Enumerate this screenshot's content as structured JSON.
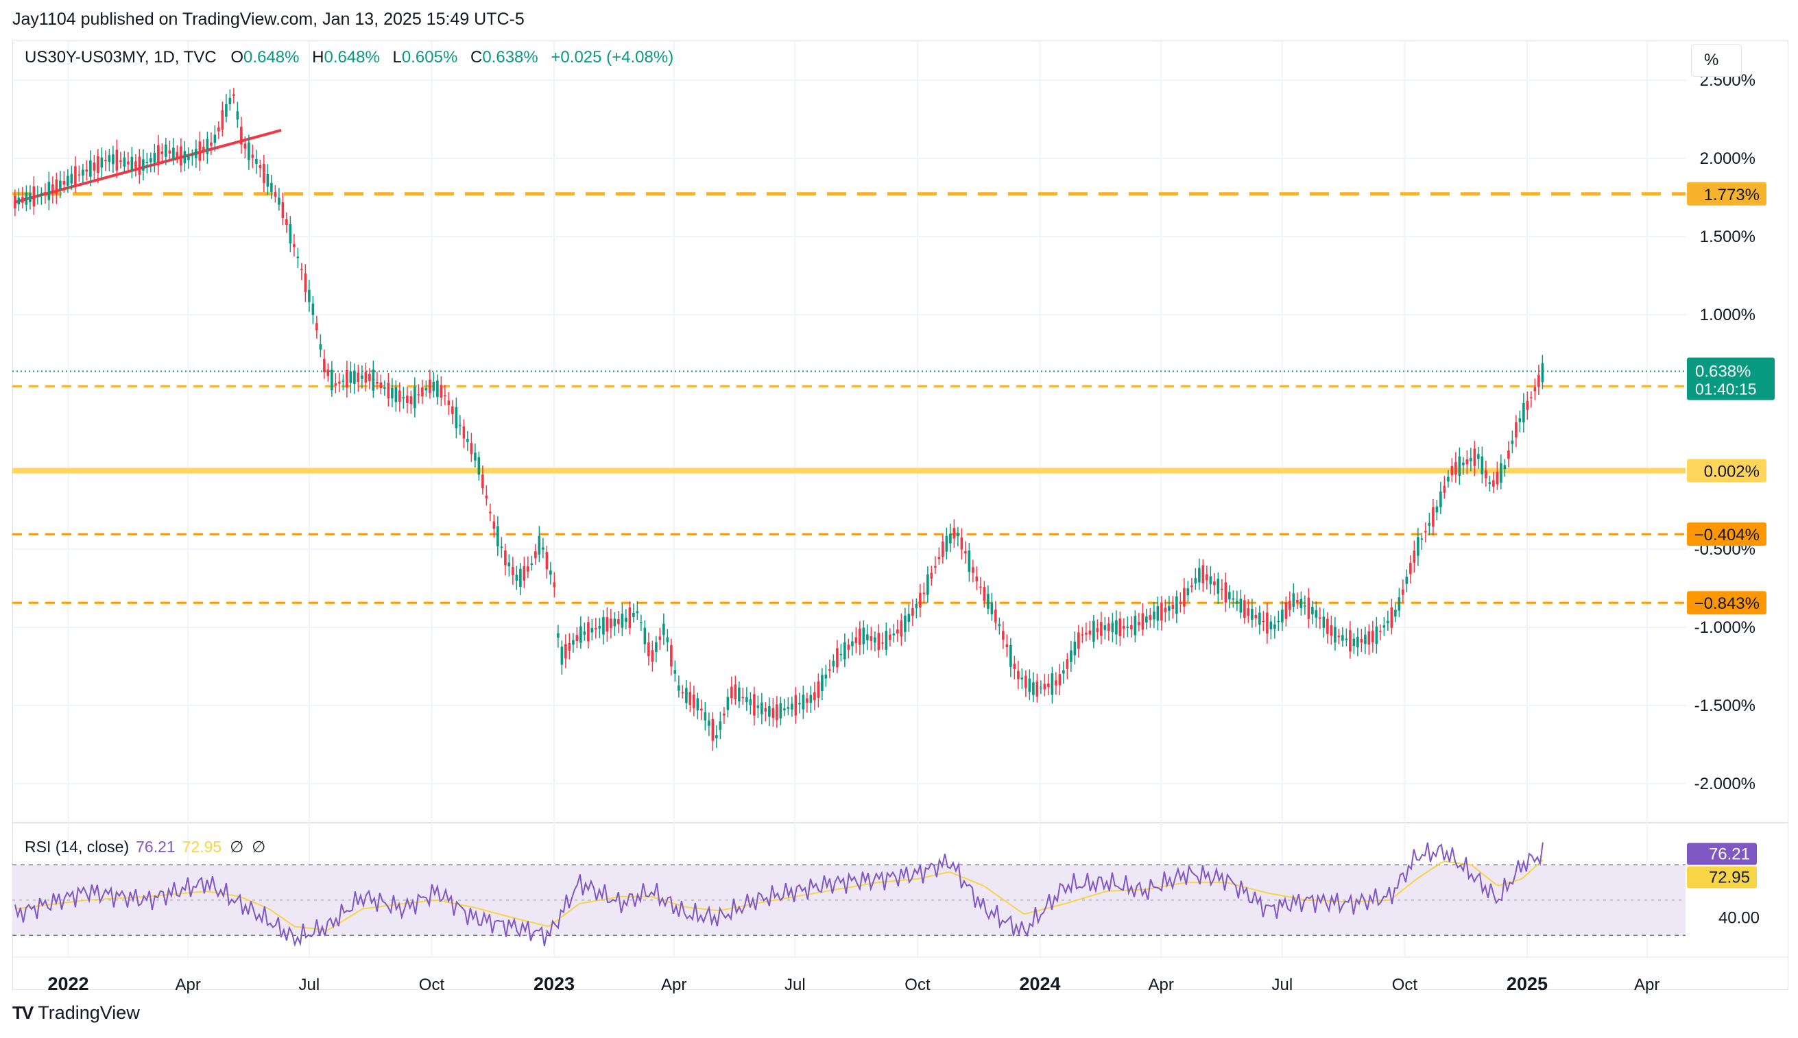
{
  "publisher": "Jay1104 published on TradingView.com, Jan 13, 2025 15:49 UTC-5",
  "legend": {
    "symbol": "US30Y-US03MY, 1D, TVC",
    "open_label": "O",
    "open": "0.648%",
    "high_label": "H",
    "high": "0.648%",
    "low_label": "L",
    "low": "0.605%",
    "close_label": "C",
    "close": "0.638%",
    "change": "+0.025 (+4.08%)"
  },
  "scale_button": "%",
  "rsi_legend": {
    "label": "RSI (14, close)",
    "rsi": "76.21",
    "ma": "72.95",
    "na1": "∅",
    "na2": "∅"
  },
  "footer": {
    "logo": "TV",
    "brand": "TradingView"
  },
  "colors": {
    "up": "#089981",
    "down": "#f23645",
    "level": "#f7b32b",
    "level_dark": "#ff9800",
    "zero_line": "#ffd65a",
    "trend": "#f23645",
    "rsi": "#7e57c2",
    "rsi_ma": "#f7d547",
    "rsi_band": "#ede7f6",
    "last_price": "#089981"
  },
  "chart_data": {
    "type": "line",
    "title": "US30Y-US03MY, 1D, TVC",
    "ylim": [
      -2.25,
      2.75
    ],
    "y_ticks": [
      "2.500%",
      "2.000%",
      "1.500%",
      "1.000%",
      "-0.500%",
      "-1.000%",
      "-1.500%",
      "-2.000%"
    ],
    "y_tick_values": [
      2.5,
      2.0,
      1.5,
      1.0,
      -0.5,
      -1.0,
      -1.5,
      -2.0
    ],
    "x_ticks": [
      "2022",
      "Apr",
      "Jul",
      "Oct",
      "2023",
      "Apr",
      "Jul",
      "Oct",
      "2024",
      "Apr",
      "Jul",
      "Oct",
      "2025",
      "Apr"
    ],
    "x_tick_dates": [
      "2022-01-01",
      "2022-04-01",
      "2022-07-01",
      "2022-10-01",
      "2023-01-01",
      "2023-04-01",
      "2023-07-01",
      "2023-10-01",
      "2024-01-01",
      "2024-04-01",
      "2024-07-01",
      "2024-10-01",
      "2025-01-01",
      "2025-04-01"
    ],
    "x_range": [
      "2021-11-20",
      "2025-04-30"
    ],
    "series": [
      {
        "name": "US30Y-US03MY",
        "x": [
          "2021-11-22",
          "2021-12-15",
          "2022-01-10",
          "2022-02-01",
          "2022-02-25",
          "2022-03-15",
          "2022-04-01",
          "2022-04-20",
          "2022-05-05",
          "2022-05-12",
          "2022-05-25",
          "2022-06-10",
          "2022-06-25",
          "2022-07-05",
          "2022-07-12",
          "2022-07-20",
          "2022-08-01",
          "2022-08-15",
          "2022-09-01",
          "2022-09-15",
          "2022-10-01",
          "2022-10-10",
          "2022-10-25",
          "2022-11-05",
          "2022-11-15",
          "2022-11-25",
          "2022-12-05",
          "2022-12-15",
          "2022-12-22",
          "2023-01-02",
          "2023-01-05",
          "2023-01-20",
          "2023-02-10",
          "2023-02-25",
          "2023-03-05",
          "2023-03-15",
          "2023-03-25",
          "2023-04-05",
          "2023-04-20",
          "2023-05-03",
          "2023-05-15",
          "2023-06-01",
          "2023-06-15",
          "2023-07-01",
          "2023-07-15",
          "2023-08-01",
          "2023-08-20",
          "2023-09-05",
          "2023-09-20",
          "2023-10-05",
          "2023-10-20",
          "2023-10-30",
          "2023-11-15",
          "2023-11-30",
          "2023-12-15",
          "2023-12-28",
          "2024-01-15",
          "2024-02-01",
          "2024-02-20",
          "2024-03-10",
          "2024-04-01",
          "2024-04-15",
          "2024-05-01",
          "2024-05-20",
          "2024-06-05",
          "2024-06-25",
          "2024-07-10",
          "2024-07-25",
          "2024-08-10",
          "2024-08-25",
          "2024-09-10",
          "2024-09-25",
          "2024-10-10",
          "2024-10-25",
          "2024-11-05",
          "2024-11-15",
          "2024-11-25",
          "2024-12-05",
          "2024-12-15",
          "2024-12-25",
          "2025-01-03",
          "2025-01-13"
        ],
        "values": [
          1.72,
          1.78,
          1.9,
          2.0,
          1.95,
          2.05,
          2.0,
          2.1,
          2.42,
          2.1,
          1.95,
          1.7,
          1.3,
          1.0,
          0.68,
          0.55,
          0.6,
          0.6,
          0.5,
          0.45,
          0.55,
          0.5,
          0.25,
          0.05,
          -0.3,
          -0.55,
          -0.7,
          -0.6,
          -0.45,
          -0.75,
          -1.2,
          -1.05,
          -0.98,
          -0.95,
          -0.9,
          -1.2,
          -1.0,
          -1.4,
          -1.5,
          -1.7,
          -1.4,
          -1.5,
          -1.55,
          -1.5,
          -1.45,
          -1.2,
          -1.05,
          -1.1,
          -1.0,
          -0.8,
          -0.5,
          -0.38,
          -0.7,
          -0.95,
          -1.3,
          -1.4,
          -1.35,
          -1.05,
          -1.0,
          -1.0,
          -0.9,
          -0.85,
          -0.65,
          -0.78,
          -0.9,
          -1.0,
          -0.82,
          -0.9,
          -1.05,
          -1.1,
          -1.05,
          -0.9,
          -0.5,
          -0.25,
          0.0,
          0.05,
          0.1,
          -0.1,
          0.02,
          0.3,
          0.45,
          0.638
        ]
      }
    ],
    "levels": [
      {
        "label": "1.773%",
        "value": 1.773,
        "style": "dashed"
      },
      {
        "label": "0.542%",
        "value": 0.542,
        "style": "dashed"
      },
      {
        "label": "0.002%",
        "value": 0.002,
        "style": "solid"
      },
      {
        "label": "−0.404%",
        "value": -0.404,
        "style": "dashed"
      },
      {
        "label": "−0.843%",
        "value": -0.843,
        "style": "dashed"
      }
    ],
    "trendline": {
      "x": [
        "2021-11-22",
        "2022-06-10"
      ],
      "y": [
        1.72,
        2.18
      ]
    },
    "last_price": {
      "label": "0.638%",
      "value": 0.638,
      "countdown": "01:40:15"
    },
    "rsi": {
      "ylim": [
        20,
        90
      ],
      "band_upper": 70,
      "band_lower": 30,
      "mid": 50,
      "tick": "40.00",
      "value_label": "76.21",
      "value": 76.21,
      "ma_label": "72.95",
      "ma": 72.95,
      "x": [
        "2021-11-22",
        "2022-01-15",
        "2022-03-01",
        "2022-04-15",
        "2022-05-10",
        "2022-06-01",
        "2022-06-20",
        "2022-07-15",
        "2022-08-10",
        "2022-09-10",
        "2022-10-05",
        "2022-11-01",
        "2022-12-01",
        "2022-12-28",
        "2023-01-20",
        "2023-02-20",
        "2023-03-15",
        "2023-04-10",
        "2023-05-05",
        "2023-06-01",
        "2023-07-01",
        "2023-08-01",
        "2023-09-01",
        "2023-10-01",
        "2023-10-25",
        "2023-11-20",
        "2023-12-20",
        "2024-01-20",
        "2024-02-20",
        "2024-03-20",
        "2024-04-20",
        "2024-05-20",
        "2024-06-20",
        "2024-07-20",
        "2024-08-20",
        "2024-09-20",
        "2024-10-10",
        "2024-10-30",
        "2024-11-20",
        "2024-12-10",
        "2024-12-28",
        "2025-01-13"
      ],
      "values": [
        42,
        55,
        50,
        60,
        48,
        38,
        28,
        35,
        52,
        45,
        55,
        40,
        35,
        30,
        60,
        48,
        55,
        42,
        40,
        50,
        55,
        60,
        62,
        65,
        72,
        45,
        32,
        58,
        60,
        55,
        65,
        62,
        45,
        50,
        48,
        52,
        75,
        78,
        65,
        50,
        70,
        76.21
      ],
      "ma_values": [
        45,
        50,
        52,
        55,
        52,
        45,
        35,
        33,
        45,
        48,
        50,
        46,
        40,
        35,
        48,
        52,
        52,
        46,
        44,
        48,
        52,
        56,
        60,
        62,
        66,
        58,
        42,
        48,
        55,
        56,
        60,
        60,
        54,
        50,
        49,
        50,
        62,
        72,
        70,
        58,
        62,
        72.95
      ]
    }
  }
}
